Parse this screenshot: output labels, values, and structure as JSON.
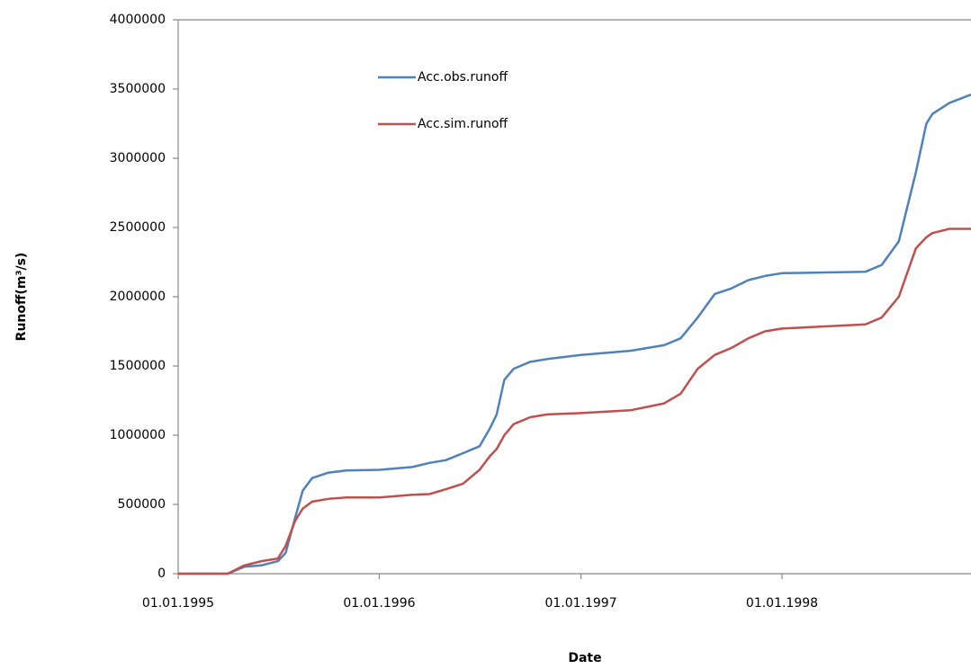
{
  "chart_data": {
    "type": "line",
    "x_label": "Date",
    "y_label": "Runoff(m³/s)",
    "x": [
      "1995-01-01",
      "1995-04-01",
      "1995-05-01",
      "1995-06-01",
      "1995-07-01",
      "1995-07-15",
      "1995-08-01",
      "1995-08-15",
      "1995-09-01",
      "1995-10-01",
      "1995-11-01",
      "1996-01-01",
      "1996-03-01",
      "1996-04-01",
      "1996-05-01",
      "1996-06-01",
      "1996-07-01",
      "1996-07-20",
      "1996-08-01",
      "1996-08-15",
      "1996-09-01",
      "1996-10-01",
      "1996-11-01",
      "1997-01-01",
      "1997-04-01",
      "1997-06-01",
      "1997-07-01",
      "1997-08-01",
      "1997-09-01",
      "1997-10-01",
      "1997-11-01",
      "1997-12-01",
      "1998-01-01",
      "1998-06-01",
      "1998-07-01",
      "1998-08-01",
      "1998-09-01",
      "1998-09-20",
      "1998-10-01",
      "1998-11-01",
      "1998-12-10"
    ],
    "series": [
      {
        "name": "Acc.obs.runoff",
        "color": "#4f81bd",
        "values": [
          0,
          0,
          50000,
          60000,
          90000,
          150000,
          400000,
          600000,
          690000,
          730000,
          745000,
          750000,
          770000,
          800000,
          820000,
          870000,
          920000,
          1050000,
          1150000,
          1400000,
          1480000,
          1530000,
          1550000,
          1580000,
          1610000,
          1650000,
          1700000,
          1850000,
          2020000,
          2060000,
          2120000,
          2150000,
          2170000,
          2180000,
          2230000,
          2400000,
          2900000,
          3250000,
          3320000,
          3400000,
          3460000
        ]
      },
      {
        "name": "Acc.sim.runoff",
        "color": "#c0504d",
        "values": [
          0,
          0,
          60000,
          90000,
          110000,
          200000,
          380000,
          470000,
          520000,
          540000,
          550000,
          550000,
          570000,
          575000,
          610000,
          650000,
          750000,
          850000,
          900000,
          1000000,
          1080000,
          1130000,
          1150000,
          1160000,
          1180000,
          1230000,
          1300000,
          1480000,
          1580000,
          1630000,
          1700000,
          1750000,
          1770000,
          1800000,
          1850000,
          2000000,
          2350000,
          2430000,
          2460000,
          2490000,
          2490000
        ]
      }
    ],
    "xlim": [
      "1995-01-01",
      "1998-12-10"
    ],
    "xticks": [
      {
        "value": "1995-01-01",
        "label": "01.01.1995"
      },
      {
        "value": "1996-01-01",
        "label": "01.01.1996"
      },
      {
        "value": "1997-01-01",
        "label": "01.01.1997"
      },
      {
        "value": "1998-01-01",
        "label": "01.01.1998"
      }
    ],
    "ylim": [
      0,
      4000000
    ],
    "yticks": [
      0,
      500000,
      1000000,
      1500000,
      2000000,
      2500000,
      3000000,
      3500000,
      4000000
    ],
    "grid": false
  }
}
